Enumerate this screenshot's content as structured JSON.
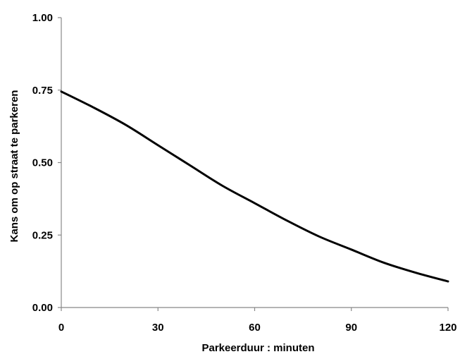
{
  "chart_data": {
    "type": "line",
    "title": "",
    "xlabel": "Parkeerduur : minuten",
    "ylabel": "Kans om op straat te parkeren",
    "xlim": [
      0,
      120
    ],
    "ylim": [
      0,
      1
    ],
    "x_ticks": [
      "0",
      "30",
      "60",
      "90",
      "120"
    ],
    "y_ticks": [
      "0.00",
      "0.25",
      "0.50",
      "0.75",
      "1.00"
    ],
    "grid": false,
    "legend": "none",
    "line_color": "#000000",
    "series": [
      {
        "x": [
          0,
          10,
          20,
          30,
          40,
          50,
          60,
          70,
          80,
          90,
          100,
          110,
          120
        ],
        "values": [
          0.745,
          0.69,
          0.63,
          0.56,
          0.49,
          0.42,
          0.36,
          0.3,
          0.245,
          0.2,
          0.155,
          0.12,
          0.09
        ]
      }
    ]
  }
}
